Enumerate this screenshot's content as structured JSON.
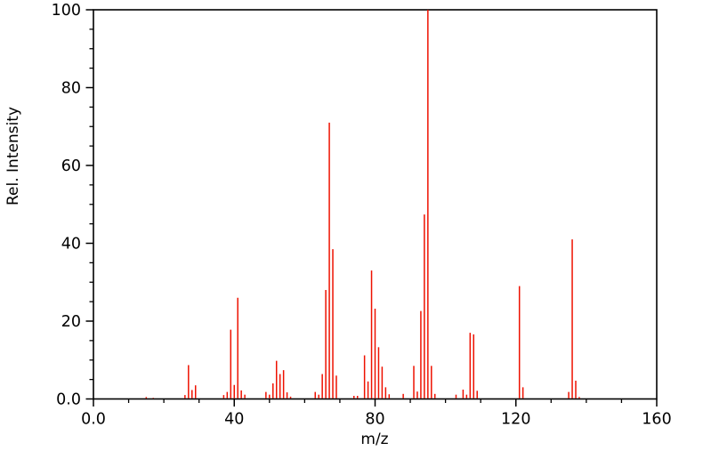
{
  "chart_data": {
    "type": "bar",
    "chart_kind": "mass-spectrum",
    "title": "",
    "xlabel": "m/z",
    "ylabel": "Rel. Intensity",
    "xlim": [
      0,
      160
    ],
    "ylim": [
      0,
      100
    ],
    "grid": false,
    "legend": "none",
    "axis_color": "#000000",
    "background_color": "#ffffff",
    "bar_color": "#ee1100",
    "x_major_ticks": [
      {
        "value": 0,
        "label": "0.0"
      },
      {
        "value": 40,
        "label": "40"
      },
      {
        "value": 80,
        "label": "80"
      },
      {
        "value": 120,
        "label": "120"
      },
      {
        "value": 160,
        "label": "160"
      }
    ],
    "x_minor_step": 10,
    "y_major_ticks": [
      {
        "value": 0,
        "label": "0.0"
      },
      {
        "value": 20,
        "label": "20"
      },
      {
        "value": 40,
        "label": "40"
      },
      {
        "value": 60,
        "label": "60"
      },
      {
        "value": 80,
        "label": "80"
      },
      {
        "value": 100,
        "label": "100"
      }
    ],
    "y_minor_step": 5,
    "peaks": [
      [
        15,
        0.5
      ],
      [
        17,
        0.3
      ],
      [
        26,
        1.0
      ],
      [
        27,
        8.7
      ],
      [
        28,
        2.3
      ],
      [
        29,
        3.5
      ],
      [
        37,
        1.0
      ],
      [
        38,
        1.8
      ],
      [
        39,
        17.8
      ],
      [
        40,
        3.6
      ],
      [
        41,
        26.0
      ],
      [
        42,
        2.2
      ],
      [
        43,
        1.1
      ],
      [
        49,
        1.8
      ],
      [
        50,
        1.1
      ],
      [
        51,
        4.0
      ],
      [
        52,
        9.8
      ],
      [
        53,
        6.4
      ],
      [
        54,
        7.4
      ],
      [
        55,
        1.7
      ],
      [
        56,
        0.6
      ],
      [
        63,
        1.8
      ],
      [
        64,
        1.1
      ],
      [
        65,
        6.4
      ],
      [
        66,
        28.0
      ],
      [
        67,
        71.0
      ],
      [
        68,
        38.5
      ],
      [
        69,
        6.0
      ],
      [
        74,
        0.8
      ],
      [
        75,
        0.8
      ],
      [
        77,
        11.2
      ],
      [
        78,
        4.5
      ],
      [
        79,
        33.0
      ],
      [
        80,
        23.2
      ],
      [
        81,
        13.3
      ],
      [
        82,
        8.3
      ],
      [
        83,
        3.0
      ],
      [
        84,
        1.2
      ],
      [
        88,
        1.3
      ],
      [
        91,
        8.5
      ],
      [
        92,
        1.9
      ],
      [
        93,
        22.6
      ],
      [
        94,
        47.4
      ],
      [
        95,
        100.0
      ],
      [
        96,
        8.5
      ],
      [
        97,
        1.3
      ],
      [
        103,
        1.1
      ],
      [
        105,
        2.4
      ],
      [
        106,
        1.1
      ],
      [
        107,
        17.0
      ],
      [
        108,
        16.6
      ],
      [
        109,
        2.1
      ],
      [
        121,
        29.0
      ],
      [
        122,
        3.0
      ],
      [
        135,
        1.8
      ],
      [
        136,
        41.0
      ],
      [
        137,
        4.7
      ],
      [
        138,
        0.5
      ]
    ]
  }
}
